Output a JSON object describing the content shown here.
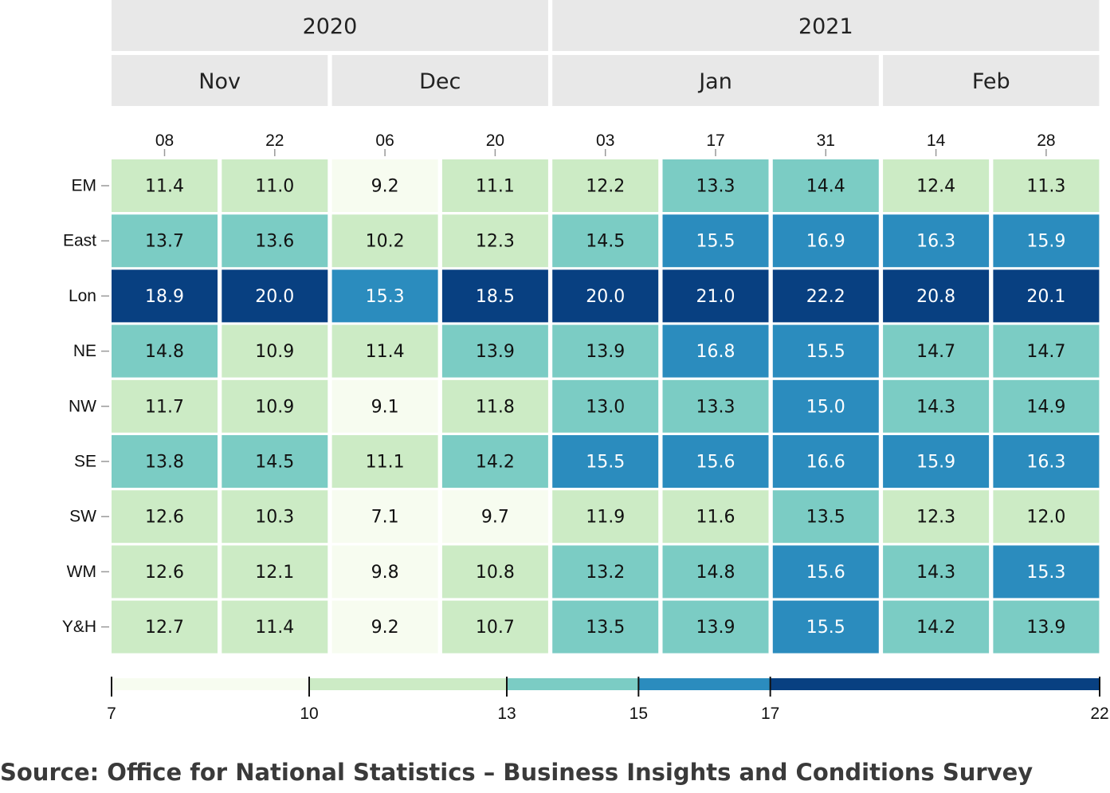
{
  "chart_data": {
    "type": "heatmap",
    "years": [
      {
        "label": "2020",
        "months": [
          "Nov",
          "Dec"
        ]
      },
      {
        "label": "2021",
        "months": [
          "Jan",
          "Feb"
        ]
      }
    ],
    "months": [
      {
        "label": "Nov",
        "days": [
          "08",
          "22"
        ]
      },
      {
        "label": "Dec",
        "days": [
          "06",
          "20"
        ]
      },
      {
        "label": "Jan",
        "days": [
          "03",
          "17",
          "31"
        ]
      },
      {
        "label": "Feb",
        "days": [
          "14",
          "28"
        ]
      }
    ],
    "x_ticks": [
      "08",
      "22",
      "06",
      "20",
      "03",
      "17",
      "31",
      "14",
      "28"
    ],
    "rows": [
      "EM",
      "East",
      "Lon",
      "NE",
      "NW",
      "SE",
      "SW",
      "WM",
      "Y&H"
    ],
    "values": [
      [
        11.4,
        11.0,
        9.2,
        11.1,
        12.2,
        13.3,
        14.4,
        12.4,
        11.3
      ],
      [
        13.7,
        13.6,
        10.2,
        12.3,
        14.5,
        15.5,
        16.9,
        16.3,
        15.9
      ],
      [
        18.9,
        20.0,
        15.3,
        18.5,
        20.0,
        21.0,
        22.2,
        20.8,
        20.1
      ],
      [
        14.8,
        10.9,
        11.4,
        13.9,
        13.9,
        16.8,
        15.5,
        14.7,
        14.7
      ],
      [
        11.7,
        10.9,
        9.1,
        11.8,
        13.0,
        13.3,
        15.0,
        14.3,
        14.9
      ],
      [
        13.8,
        14.5,
        11.1,
        14.2,
        15.5,
        15.6,
        16.6,
        15.9,
        16.3
      ],
      [
        12.6,
        10.3,
        7.1,
        9.7,
        11.9,
        11.6,
        13.5,
        12.3,
        12.0
      ],
      [
        12.6,
        12.1,
        9.8,
        10.8,
        13.2,
        14.8,
        15.6,
        14.3,
        15.3
      ],
      [
        12.7,
        11.4,
        9.2,
        10.7,
        13.5,
        13.9,
        15.5,
        14.2,
        13.9
      ]
    ],
    "color_scale": {
      "breaks": [
        7,
        10,
        13,
        15,
        17,
        22
      ],
      "colors": [
        "#f7fcf0",
        "#ccebc5",
        "#7bccc4",
        "#2b8cbe",
        "#084081"
      ],
      "dark_text_color": "#111111",
      "light_text_color": "#ffffff"
    },
    "legend_labels": [
      "7",
      "10",
      "13",
      "15",
      "17",
      "22"
    ],
    "legend_placement": "bottom"
  },
  "source_text": "Source: Office for National Statistics – Business Insights and Conditions Survey"
}
